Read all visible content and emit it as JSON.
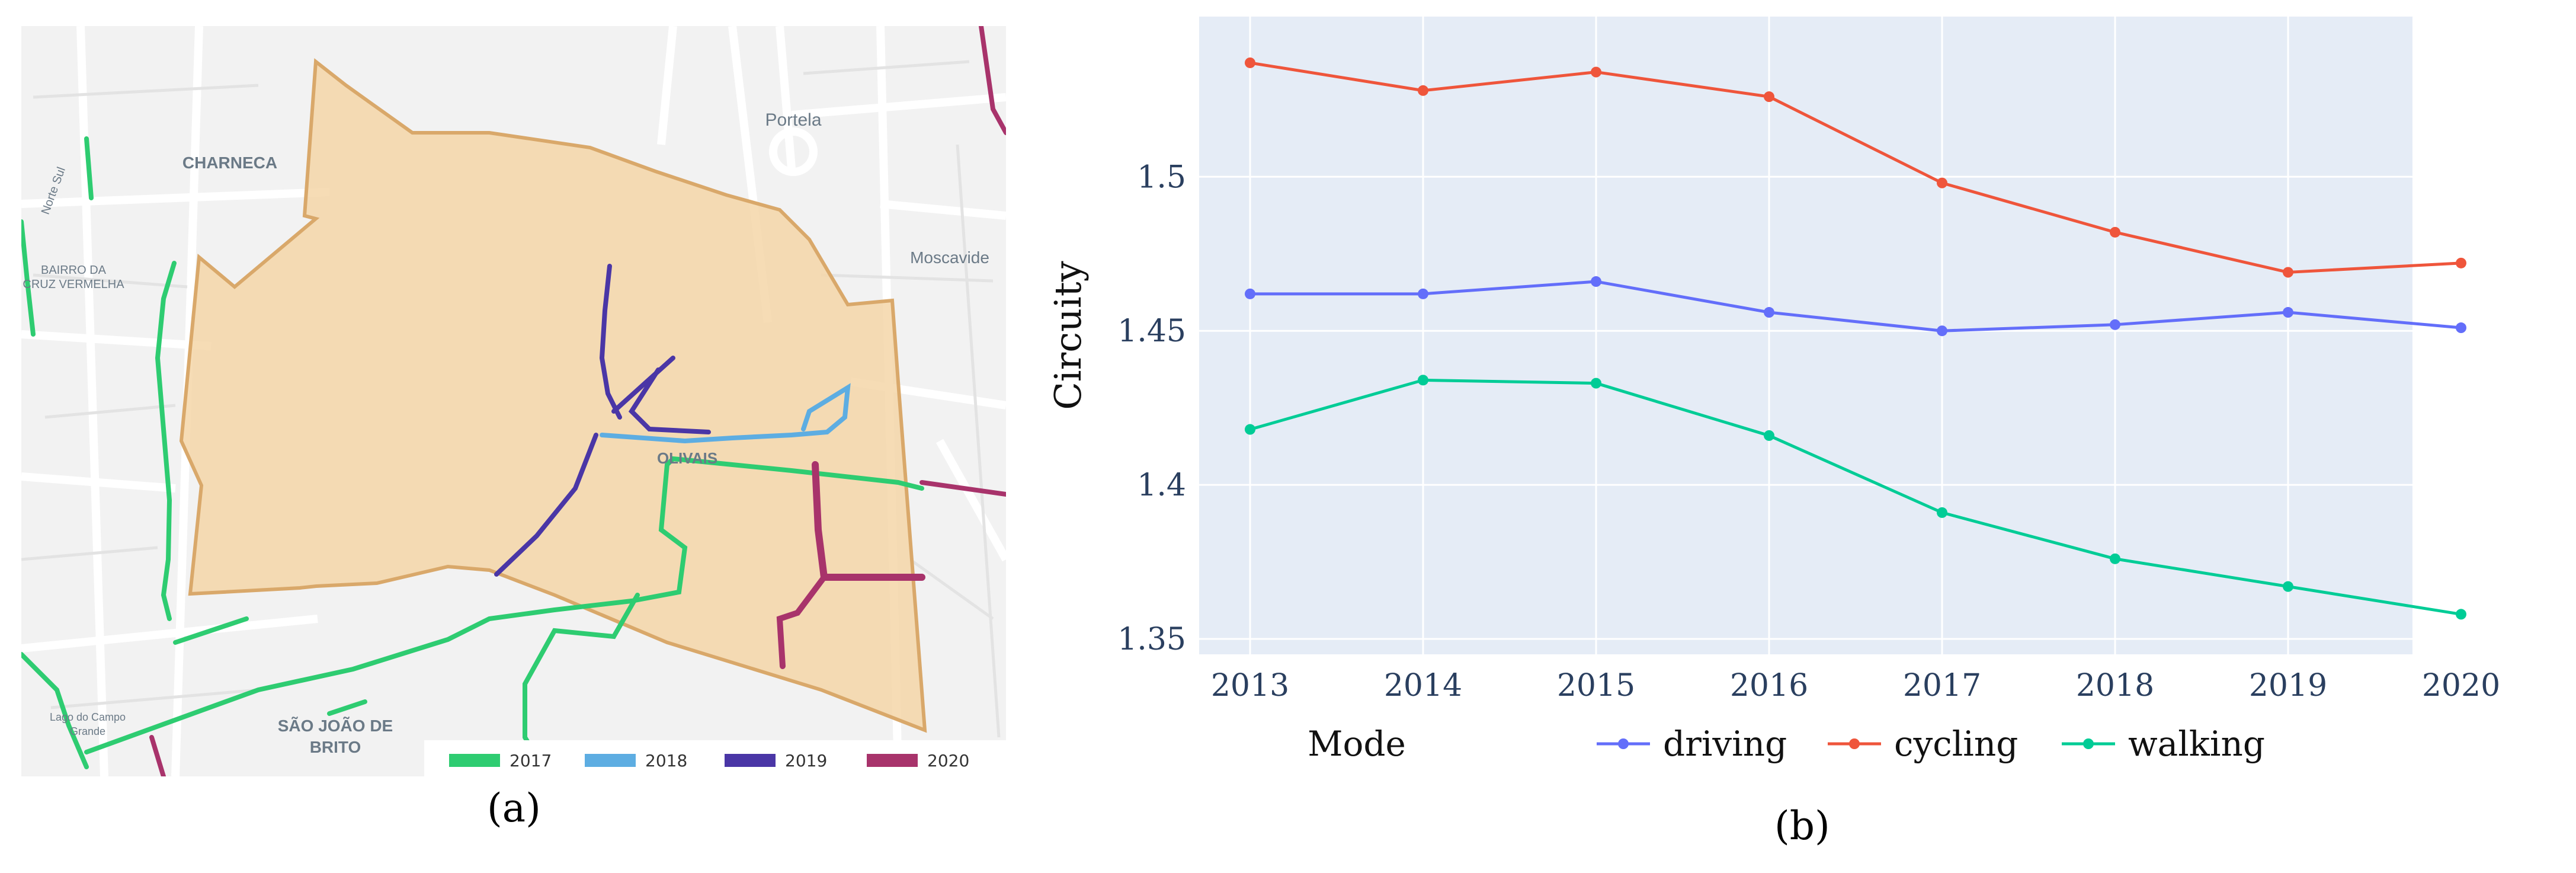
{
  "panel_a": {
    "label": "(a)",
    "place_names": [
      "CHARNECA",
      "Portela",
      "Moscavide",
      "BAIRRO DA",
      "CRUZ VERMELHA",
      "OLIVAIS",
      "SÃO JOÃO DE",
      "BRITO",
      "Lago do Campo",
      "Grande",
      "Norte Sul"
    ],
    "legend": [
      {
        "label": "2017",
        "color": "#2ecc71"
      },
      {
        "label": "2018",
        "color": "#5dade2"
      },
      {
        "label": "2019",
        "color": "#4a36a6"
      },
      {
        "label": "2020",
        "color": "#a8336b"
      }
    ],
    "area_fill": "#f5d6a8",
    "area_stroke": "#d9a86a"
  },
  "panel_b": {
    "label": "(b)"
  },
  "chart_data": {
    "type": "line",
    "title": "",
    "xlabel": "",
    "ylabel": "Circuity",
    "x": [
      2013,
      2014,
      2015,
      2016,
      2017,
      2018,
      2019,
      2020
    ],
    "ylim": [
      1.345,
      1.552
    ],
    "yticks": [
      1.35,
      1.4,
      1.45,
      1.5
    ],
    "ytick_labels": [
      "1.35",
      "1.4",
      "1.45",
      "1.5"
    ],
    "legend_title": "Mode",
    "legend_position": "bottom",
    "grid": true,
    "series": [
      {
        "name": "driving",
        "color": "#636efa",
        "values": [
          1.462,
          1.462,
          1.466,
          1.456,
          1.45,
          1.452,
          1.456,
          1.451
        ]
      },
      {
        "name": "cycling",
        "color": "#ef553b",
        "values": [
          1.537,
          1.528,
          1.534,
          1.526,
          1.498,
          1.482,
          1.469,
          1.472
        ]
      },
      {
        "name": "walking",
        "color": "#00cc96",
        "values": [
          1.418,
          1.434,
          1.433,
          1.416,
          1.391,
          1.376,
          1.367,
          1.358
        ]
      }
    ]
  }
}
